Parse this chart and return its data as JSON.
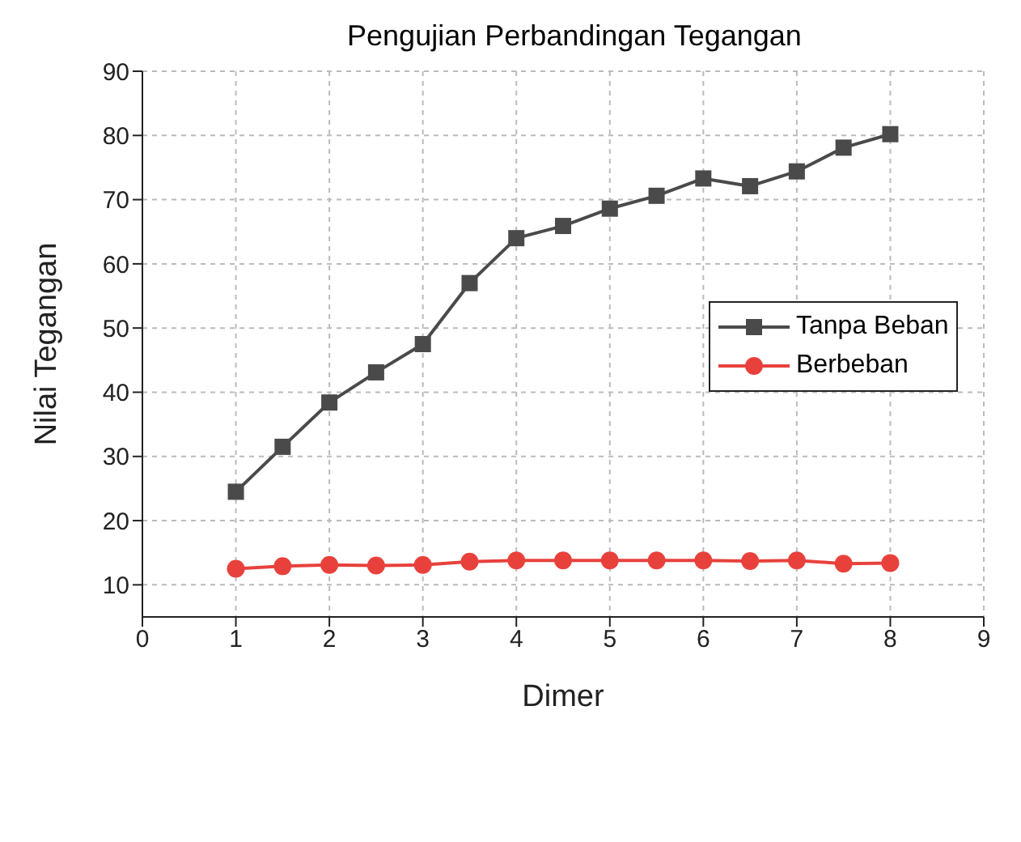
{
  "chart_data": {
    "type": "line",
    "title": "Pengujian Perbandingan Tegangan",
    "xlabel": "Dimer",
    "ylabel": "Nilai Tegangan",
    "x": [
      1,
      1.5,
      2,
      2.5,
      3,
      3.5,
      4,
      4.5,
      5,
      5.5,
      6,
      6.5,
      7,
      7.5,
      8
    ],
    "series": [
      {
        "name": "Tanpa Beban",
        "color": "#4a4a4a",
        "marker": "square",
        "values": [
          24.5,
          31.5,
          38.4,
          43.1,
          47.5,
          57,
          64,
          65.9,
          68.6,
          70.6,
          73.3,
          72.1,
          74.4,
          78.1,
          80.2
        ]
      },
      {
        "name": "Berbeban",
        "color": "#e8413c",
        "marker": "circle",
        "values": [
          12.5,
          12.9,
          13.1,
          13,
          13.1,
          13.6,
          13.8,
          13.8,
          13.8,
          13.8,
          13.8,
          13.7,
          13.8,
          13.3,
          13.4
        ]
      }
    ],
    "xlim": [
      0,
      9
    ],
    "xticks": [
      0,
      1,
      2,
      3,
      4,
      5,
      6,
      7,
      8,
      9
    ],
    "ylim": [
      5,
      90
    ],
    "yticks": [
      10,
      20,
      30,
      40,
      50,
      60,
      70,
      80,
      90
    ],
    "grid": true,
    "legend": "right",
    "line_style": "solid"
  }
}
